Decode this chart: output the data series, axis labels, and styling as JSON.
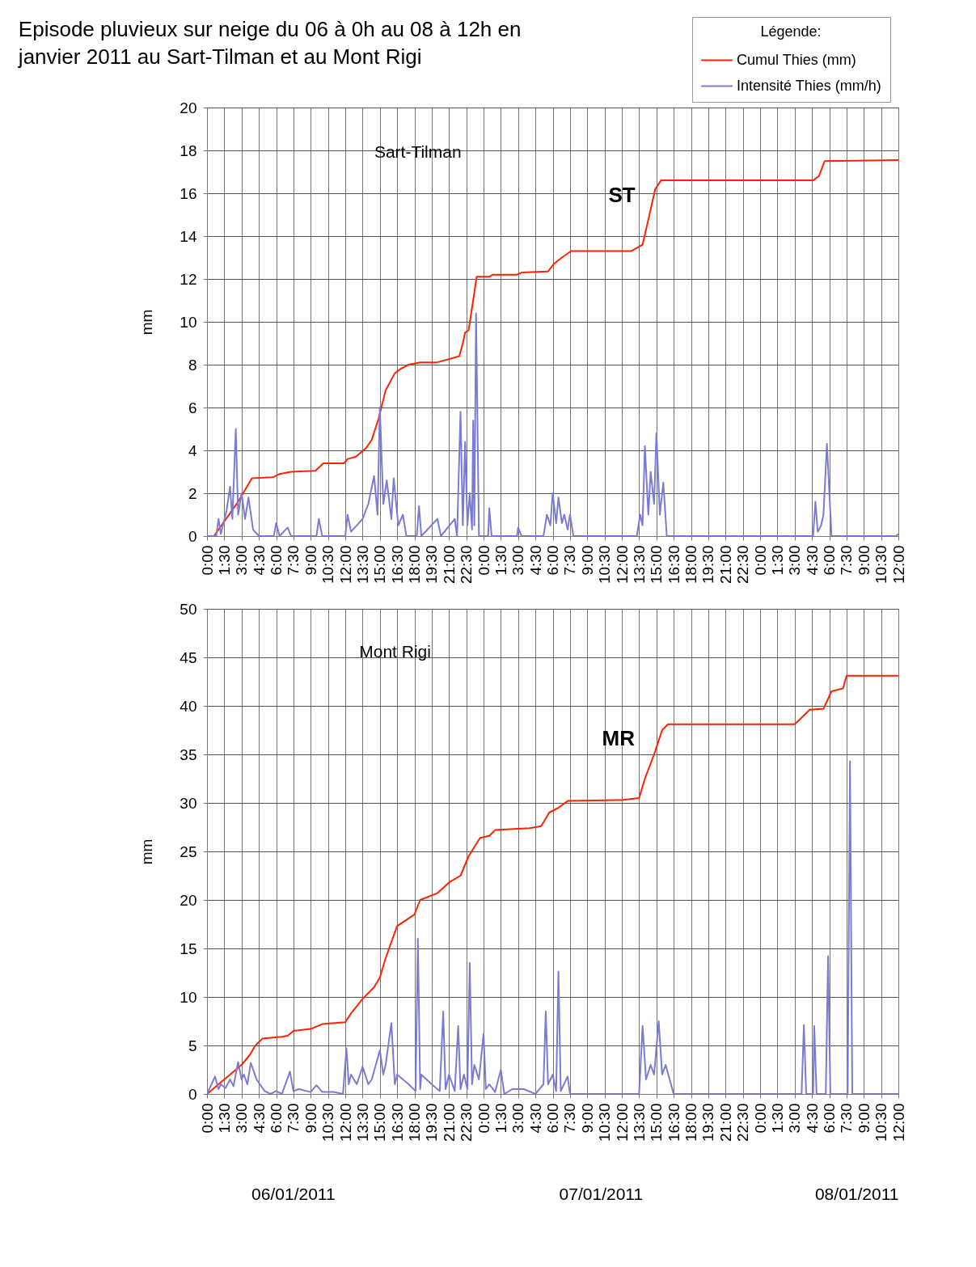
{
  "chart_data": [
    {
      "type": "line",
      "title": "Episode pluvieux sur neige du 06 à 0h au 08 à 12h en janvier 2011 au Sart-Tilman et au Mont Rigi",
      "ylabel": "mm",
      "legend_title": "Légende:",
      "legend": "top right",
      "grid": true,
      "line_style": "solid",
      "xlim": [
        "2011-01-06T00:00",
        "2011-01-08T12:00"
      ],
      "ylim": [
        0,
        20
      ],
      "yticks": [
        0,
        2,
        4,
        6,
        8,
        10,
        12,
        14,
        16,
        18,
        20
      ],
      "xticks": [
        {
          "value": "2011-01-06T00:00",
          "label": "0:00"
        },
        {
          "value": "2011-01-06T01:30",
          "label": "1:30"
        },
        {
          "value": "2011-01-06T03:00",
          "label": "3:00"
        },
        {
          "value": "2011-01-06T04:30",
          "label": "4:30"
        },
        {
          "value": "2011-01-06T06:00",
          "label": "6:00"
        },
        {
          "value": "2011-01-06T07:30",
          "label": "7:30"
        },
        {
          "value": "2011-01-06T09:00",
          "label": "9:00"
        },
        {
          "value": "2011-01-06T10:30",
          "label": "10:30"
        },
        {
          "value": "2011-01-06T12:00",
          "label": "12:00"
        },
        {
          "value": "2011-01-06T13:30",
          "label": "13:30"
        },
        {
          "value": "2011-01-06T15:00",
          "label": "15:00"
        },
        {
          "value": "2011-01-06T16:30",
          "label": "16:30"
        },
        {
          "value": "2011-01-06T18:00",
          "label": "18:00"
        },
        {
          "value": "2011-01-06T19:30",
          "label": "19:30"
        },
        {
          "value": "2011-01-06T21:00",
          "label": "21:00"
        },
        {
          "value": "2011-01-06T22:30",
          "label": "22:30"
        },
        {
          "value": "2011-01-07T00:00",
          "label": "0:00"
        },
        {
          "value": "2011-01-07T01:30",
          "label": "1:30"
        },
        {
          "value": "2011-01-07T03:00",
          "label": "3:00"
        },
        {
          "value": "2011-01-07T04:30",
          "label": "4:30"
        },
        {
          "value": "2011-01-07T06:00",
          "label": "6:00"
        },
        {
          "value": "2011-01-07T07:30",
          "label": "7:30"
        },
        {
          "value": "2011-01-07T09:00",
          "label": "9:00"
        },
        {
          "value": "2011-01-07T10:30",
          "label": "10:30"
        },
        {
          "value": "2011-01-07T12:00",
          "label": "12:00"
        },
        {
          "value": "2011-01-07T13:30",
          "label": "13:30"
        },
        {
          "value": "2011-01-07T15:00",
          "label": "15:00"
        },
        {
          "value": "2011-01-07T16:30",
          "label": "16:30"
        },
        {
          "value": "2011-01-07T18:00",
          "label": "18:00"
        },
        {
          "value": "2011-01-07T19:30",
          "label": "19:30"
        },
        {
          "value": "2011-01-07T21:00",
          "label": "21:00"
        },
        {
          "value": "2011-01-07T22:30",
          "label": "22:30"
        },
        {
          "value": "2011-01-08T00:00",
          "label": "0:00"
        },
        {
          "value": "2011-01-08T01:30",
          "label": "1:30"
        },
        {
          "value": "2011-01-08T03:00",
          "label": "3:00"
        },
        {
          "value": "2011-01-08T04:30",
          "label": "4:30"
        },
        {
          "value": "2011-01-08T06:00",
          "label": "6:00"
        },
        {
          "value": "2011-01-08T07:30",
          "label": "7:30"
        },
        {
          "value": "2011-01-08T09:00",
          "label": "9:00"
        },
        {
          "value": "2011-01-08T10:30",
          "label": "10:30"
        },
        {
          "value": "2011-01-08T12:00",
          "label": "12:00"
        }
      ],
      "annotations": [
        "Sart-Tilman",
        "ST"
      ],
      "series": [
        {
          "name": "Cumul Thies (mm)",
          "color": "#ff2200",
          "x": [
            "2011-01-06T00:00",
            "2011-01-06T00:36",
            "2011-01-06T02:42",
            "2011-01-06T03:54",
            "2011-01-06T05:45",
            "2011-01-06T06:18",
            "2011-01-06T07:18",
            "2011-01-06T09:24",
            "2011-01-06T10:06",
            "2011-01-06T11:54",
            "2011-01-06T12:12",
            "2011-01-06T12:54",
            "2011-01-06T13:48",
            "2011-01-06T14:18",
            "2011-01-06T14:54",
            "2011-01-06T15:30",
            "2011-01-06T16:18",
            "2011-01-06T16:48",
            "2011-01-06T17:30",
            "2011-01-06T18:30",
            "2011-01-06T19:54",
            "2011-01-06T21:18",
            "2011-01-06T21:54",
            "2011-01-06T22:12",
            "2011-01-06T22:24",
            "2011-01-06T22:42",
            "2011-01-06T23:06",
            "2011-01-06T23:24",
            "2011-01-07T00:30",
            "2011-01-07T00:48",
            "2011-01-07T02:54",
            "2011-01-07T03:18",
            "2011-01-07T05:36",
            "2011-01-07T06:06",
            "2011-01-07T06:48",
            "2011-01-07T07:36",
            "2011-01-07T12:48",
            "2011-01-07T13:48",
            "2011-01-07T14:24",
            "2011-01-07T14:54",
            "2011-01-07T15:24",
            "2011-01-08T04:36",
            "2011-01-08T05:06",
            "2011-01-08T05:36",
            "2011-01-08T12:00"
          ],
          "values": [
            0,
            0,
            1.6,
            2.7,
            2.75,
            2.9,
            3.0,
            3.05,
            3.4,
            3.4,
            3.6,
            3.7,
            4.1,
            4.5,
            5.5,
            6.8,
            7.6,
            7.8,
            8.0,
            8.1,
            8.1,
            8.3,
            8.4,
            9.0,
            9.5,
            9.6,
            11.0,
            12.1,
            12.1,
            12.2,
            12.2,
            12.3,
            12.35,
            12.7,
            13.0,
            13.3,
            13.3,
            13.6,
            15.0,
            16.2,
            16.6,
            16.6,
            16.8,
            17.5,
            17.55
          ]
        },
        {
          "name": "Intensité Thies (mm/h)",
          "color": "#7b7bd6",
          "x": [
            "2011-01-06T00:00",
            "2011-01-06T00:48",
            "2011-01-06T01:00",
            "2011-01-06T01:12",
            "2011-01-06T01:42",
            "2011-01-06T02:00",
            "2011-01-06T02:12",
            "2011-01-06T02:30",
            "2011-01-06T02:42",
            "2011-01-06T03:00",
            "2011-01-06T03:18",
            "2011-01-06T03:36",
            "2011-01-06T04:00",
            "2011-01-06T04:30",
            "2011-01-06T05:48",
            "2011-01-06T06:00",
            "2011-01-06T06:18",
            "2011-01-06T07:00",
            "2011-01-06T07:18",
            "2011-01-06T09:30",
            "2011-01-06T09:42",
            "2011-01-06T10:00",
            "2011-01-06T12:00",
            "2011-01-06T12:12",
            "2011-01-06T12:30",
            "2011-01-06T13:30",
            "2011-01-06T14:00",
            "2011-01-06T14:30",
            "2011-01-06T14:48",
            "2011-01-06T15:00",
            "2011-01-06T15:18",
            "2011-01-06T15:36",
            "2011-01-06T16:00",
            "2011-01-06T16:12",
            "2011-01-06T16:36",
            "2011-01-06T17:00",
            "2011-01-06T17:18",
            "2011-01-06T18:12",
            "2011-01-06T18:24",
            "2011-01-06T18:36",
            "2011-01-06T20:00",
            "2011-01-06T20:18",
            "2011-01-06T21:30",
            "2011-01-06T21:42",
            "2011-01-06T22:00",
            "2011-01-06T22:12",
            "2011-01-06T22:24",
            "2011-01-06T22:36",
            "2011-01-06T22:48",
            "2011-01-06T23:00",
            "2011-01-06T23:06",
            "2011-01-06T23:12",
            "2011-01-06T23:21",
            "2011-01-06T23:36",
            "2011-01-07T00:24",
            "2011-01-07T00:30",
            "2011-01-07T00:42",
            "2011-01-07T02:54",
            "2011-01-07T03:00",
            "2011-01-07T03:18",
            "2011-01-07T05:12",
            "2011-01-07T05:30",
            "2011-01-07T05:48",
            "2011-01-07T06:00",
            "2011-01-07T06:18",
            "2011-01-07T06:30",
            "2011-01-07T06:48",
            "2011-01-07T07:00",
            "2011-01-07T07:18",
            "2011-01-07T07:30",
            "2011-01-07T07:48",
            "2011-01-07T13:18",
            "2011-01-07T13:36",
            "2011-01-07T13:48",
            "2011-01-07T14:00",
            "2011-01-07T14:18",
            "2011-01-07T14:30",
            "2011-01-07T14:48",
            "2011-01-07T15:00",
            "2011-01-07T15:18",
            "2011-01-07T15:36",
            "2011-01-07T15:54",
            "2011-01-08T04:36",
            "2011-01-08T04:48",
            "2011-01-08T05:00",
            "2011-01-08T05:18",
            "2011-01-08T05:30",
            "2011-01-08T05:48",
            "2011-01-08T06:12",
            "2011-01-08T11:48",
            "2011-01-08T12:00"
          ],
          "values": [
            0,
            0,
            0.8,
            0.1,
            1.2,
            2.3,
            0.8,
            5.0,
            1.0,
            2.0,
            0.8,
            1.8,
            0.3,
            0,
            0,
            0.6,
            0,
            0.4,
            0,
            0,
            0.8,
            0,
            0,
            1.0,
            0.2,
            0.8,
            1.5,
            2.8,
            1.0,
            6.0,
            1.5,
            2.6,
            0.8,
            2.7,
            0.5,
            1.0,
            0,
            0,
            1.4,
            0,
            0.8,
            0,
            0.8,
            0,
            5.8,
            0.5,
            4.4,
            0.5,
            2.0,
            0.3,
            5.4,
            0.5,
            10.4,
            0,
            0,
            1.3,
            0,
            0,
            0.4,
            0,
            0,
            1.0,
            0.5,
            2.0,
            0.6,
            1.8,
            0.6,
            1.0,
            0.3,
            1.0,
            0,
            0,
            1.0,
            0.5,
            4.2,
            1.0,
            3.0,
            1.5,
            4.8,
            1.0,
            2.5,
            0,
            0,
            1.6,
            0.2,
            0.5,
            1.0,
            4.3,
            0,
            0,
            0.1
          ]
        }
      ]
    },
    {
      "type": "line",
      "ylabel": "mm",
      "grid": true,
      "line_style": "solid",
      "xlim": [
        "2011-01-06T00:00",
        "2011-01-08T12:00"
      ],
      "ylim": [
        0,
        50
      ],
      "yticks": [
        0,
        5,
        10,
        15,
        20,
        25,
        30,
        35,
        40,
        45,
        50
      ],
      "xticks": [
        {
          "value": "2011-01-06T00:00",
          "label": "0:00"
        },
        {
          "value": "2011-01-06T01:30",
          "label": "1:30"
        },
        {
          "value": "2011-01-06T03:00",
          "label": "3:00"
        },
        {
          "value": "2011-01-06T04:30",
          "label": "4:30"
        },
        {
          "value": "2011-01-06T06:00",
          "label": "6:00"
        },
        {
          "value": "2011-01-06T07:30",
          "label": "7:30"
        },
        {
          "value": "2011-01-06T09:00",
          "label": "9:00"
        },
        {
          "value": "2011-01-06T10:30",
          "label": "10:30"
        },
        {
          "value": "2011-01-06T12:00",
          "label": "12:00"
        },
        {
          "value": "2011-01-06T13:30",
          "label": "13:30"
        },
        {
          "value": "2011-01-06T15:00",
          "label": "15:00"
        },
        {
          "value": "2011-01-06T16:30",
          "label": "16:30"
        },
        {
          "value": "2011-01-06T18:00",
          "label": "18:00"
        },
        {
          "value": "2011-01-06T19:30",
          "label": "19:30"
        },
        {
          "value": "2011-01-06T21:00",
          "label": "21:00"
        },
        {
          "value": "2011-01-06T22:30",
          "label": "22:30"
        },
        {
          "value": "2011-01-07T00:00",
          "label": "0:00"
        },
        {
          "value": "2011-01-07T01:30",
          "label": "1:30"
        },
        {
          "value": "2011-01-07T03:00",
          "label": "3:00"
        },
        {
          "value": "2011-01-07T04:30",
          "label": "4:30"
        },
        {
          "value": "2011-01-07T06:00",
          "label": "6:00"
        },
        {
          "value": "2011-01-07T07:30",
          "label": "7:30"
        },
        {
          "value": "2011-01-07T09:00",
          "label": "9:00"
        },
        {
          "value": "2011-01-07T10:30",
          "label": "10:30"
        },
        {
          "value": "2011-01-07T12:00",
          "label": "12:00"
        },
        {
          "value": "2011-01-07T13:30",
          "label": "13:30"
        },
        {
          "value": "2011-01-07T15:00",
          "label": "15:00"
        },
        {
          "value": "2011-01-07T16:30",
          "label": "16:30"
        },
        {
          "value": "2011-01-07T18:00",
          "label": "18:00"
        },
        {
          "value": "2011-01-07T19:30",
          "label": "19:30"
        },
        {
          "value": "2011-01-07T21:00",
          "label": "21:00"
        },
        {
          "value": "2011-01-07T22:30",
          "label": "22:30"
        },
        {
          "value": "2011-01-08T00:00",
          "label": "0:00"
        },
        {
          "value": "2011-01-08T01:30",
          "label": "1:30"
        },
        {
          "value": "2011-01-08T03:00",
          "label": "3:00"
        },
        {
          "value": "2011-01-08T04:30",
          "label": "4:30"
        },
        {
          "value": "2011-01-08T06:00",
          "label": "6:00"
        },
        {
          "value": "2011-01-08T07:30",
          "label": "7:30"
        },
        {
          "value": "2011-01-08T09:00",
          "label": "9:00"
        },
        {
          "value": "2011-01-08T10:30",
          "label": "10:30"
        },
        {
          "value": "2011-01-08T12:00",
          "label": "12:00"
        }
      ],
      "annotations": [
        "Mont Rigi",
        "MR",
        "06/01/2011",
        "07/01/2011",
        "08/01/2011"
      ],
      "series": [
        {
          "color": "#ff2200",
          "x": [
            "2011-01-06T00:00",
            "2011-01-06T01:00",
            "2011-01-06T02:00",
            "2011-01-06T03:00",
            "2011-01-06T03:42",
            "2011-01-06T04:12",
            "2011-01-06T04:48",
            "2011-01-06T06:30",
            "2011-01-06T07:00",
            "2011-01-06T07:30",
            "2011-01-06T09:00",
            "2011-01-06T10:00",
            "2011-01-06T12:00",
            "2011-01-06T12:30",
            "2011-01-06T13:30",
            "2011-01-06T14:30",
            "2011-01-06T15:00",
            "2011-01-06T15:30",
            "2011-01-06T16:30",
            "2011-01-06T18:00",
            "2011-01-06T18:30",
            "2011-01-06T20:00",
            "2011-01-06T21:00",
            "2011-01-06T22:00",
            "2011-01-06T22:42",
            "2011-01-06T23:42",
            "2011-01-07T00:30",
            "2011-01-07T01:00",
            "2011-01-07T04:00",
            "2011-01-07T05:00",
            "2011-01-07T05:42",
            "2011-01-07T06:30",
            "2011-01-07T07:18",
            "2011-01-07T12:00",
            "2011-01-07T13:30",
            "2011-01-07T14:00",
            "2011-01-07T14:48",
            "2011-01-07T15:30",
            "2011-01-07T16:00",
            "2011-01-08T03:00",
            "2011-01-08T03:42",
            "2011-01-08T04:18",
            "2011-01-08T05:30",
            "2011-01-08T06:12",
            "2011-01-08T07:12",
            "2011-01-08T07:30",
            "2011-01-08T12:00"
          ],
          "values": [
            0,
            1,
            2,
            3,
            4,
            5,
            5.7,
            5.9,
            6.0,
            6.5,
            6.7,
            7.2,
            7.4,
            8.3,
            9.8,
            11,
            12,
            14,
            17.3,
            18.5,
            20,
            20.7,
            21.8,
            22.5,
            24.5,
            26.4,
            26.6,
            27.2,
            27.4,
            27.6,
            29,
            29.5,
            30.2,
            30.3,
            30.5,
            32.5,
            35,
            37.5,
            38.1,
            38.1,
            38.9,
            39.6,
            39.7,
            41.5,
            41.8,
            43.1,
            43.1
          ]
        },
        {
          "color": "#7b7bd6",
          "x": [
            "2011-01-06T00:00",
            "2011-01-06T00:42",
            "2011-01-06T01:00",
            "2011-01-06T01:12",
            "2011-01-06T01:36",
            "2011-01-06T02:00",
            "2011-01-06T02:18",
            "2011-01-06T02:42",
            "2011-01-06T03:00",
            "2011-01-06T03:12",
            "2011-01-06T03:30",
            "2011-01-06T03:48",
            "2011-01-06T04:18",
            "2011-01-06T05:00",
            "2011-01-06T05:30",
            "2011-01-06T06:00",
            "2011-01-06T06:30",
            "2011-01-06T07:12",
            "2011-01-06T07:30",
            "2011-01-06T08:00",
            "2011-01-06T09:00",
            "2011-01-06T09:30",
            "2011-01-06T10:00",
            "2011-01-06T11:00",
            "2011-01-06T11:48",
            "2011-01-06T12:06",
            "2011-01-06T12:18",
            "2011-01-06T12:30",
            "2011-01-06T13:00",
            "2011-01-06T13:30",
            "2011-01-06T14:00",
            "2011-01-06T14:18",
            "2011-01-06T15:00",
            "2011-01-06T15:18",
            "2011-01-06T15:30",
            "2011-01-06T16:00",
            "2011-01-06T16:18",
            "2011-01-06T16:30",
            "2011-01-06T17:30",
            "2011-01-06T18:06",
            "2011-01-06T18:18",
            "2011-01-06T18:30",
            "2011-01-06T18:36",
            "2011-01-06T19:30",
            "2011-01-06T20:12",
            "2011-01-06T20:30",
            "2011-01-06T20:42",
            "2011-01-06T21:00",
            "2011-01-06T21:30",
            "2011-01-06T21:48",
            "2011-01-06T22:00",
            "2011-01-06T22:18",
            "2011-01-06T22:36",
            "2011-01-06T22:48",
            "2011-01-06T23:00",
            "2011-01-06T23:12",
            "2011-01-06T23:36",
            "2011-01-07T00:00",
            "2011-01-07T00:12",
            "2011-01-07T00:30",
            "2011-01-07T01:00",
            "2011-01-07T01:30",
            "2011-01-07T01:48",
            "2011-01-07T02:30",
            "2011-01-07T03:30",
            "2011-01-07T04:30",
            "2011-01-07T05:12",
            "2011-01-07T05:24",
            "2011-01-07T05:36",
            "2011-01-07T06:00",
            "2011-01-07T06:18",
            "2011-01-07T06:30",
            "2011-01-07T06:42",
            "2011-01-07T07:18",
            "2011-01-07T07:30",
            "2011-01-07T13:30",
            "2011-01-07T13:48",
            "2011-01-07T14:06",
            "2011-01-07T14:30",
            "2011-01-07T14:48",
            "2011-01-07T15:12",
            "2011-01-07T15:30",
            "2011-01-07T15:48",
            "2011-01-07T16:30",
            "2011-01-08T03:36",
            "2011-01-08T03:48",
            "2011-01-08T04:00",
            "2011-01-08T04:36",
            "2011-01-08T04:42",
            "2011-01-08T04:54",
            "2011-01-08T05:42",
            "2011-01-08T05:54",
            "2011-01-08T06:06",
            "2011-01-08T07:36",
            "2011-01-08T07:48",
            "2011-01-08T08:00",
            "2011-01-08T12:00"
          ],
          "values": [
            0,
            1.8,
            0.5,
            1.0,
            0.6,
            1.5,
            0.8,
            3.3,
            1.5,
            2.0,
            1.0,
            3.2,
            1.5,
            0.3,
            0,
            0.3,
            0,
            2.3,
            0.3,
            0.5,
            0.2,
            0.9,
            0.2,
            0.2,
            0,
            4.7,
            1.0,
            2.0,
            1.0,
            2.8,
            1.0,
            1.5,
            4.5,
            2.0,
            3.0,
            7.3,
            1.0,
            2.0,
            1.0,
            0.3,
            16.0,
            0.5,
            2.0,
            1.0,
            0.3,
            8.5,
            0.5,
            2.0,
            0.3,
            7.0,
            0.5,
            2.0,
            0.5,
            13.5,
            1.0,
            3.0,
            1.5,
            6.2,
            0.5,
            1.0,
            0.2,
            2.5,
            0,
            0.5,
            0.5,
            0,
            1.0,
            8.5,
            1.0,
            2.0,
            0.3,
            12.6,
            0.3,
            1.8,
            0,
            0,
            7.0,
            1.5,
            3.0,
            2.0,
            7.5,
            2.0,
            3.0,
            0,
            0,
            7.1,
            0,
            0,
            7.0,
            0,
            0,
            14.2,
            0,
            0,
            34.3,
            0,
            0
          ]
        }
      ]
    }
  ]
}
